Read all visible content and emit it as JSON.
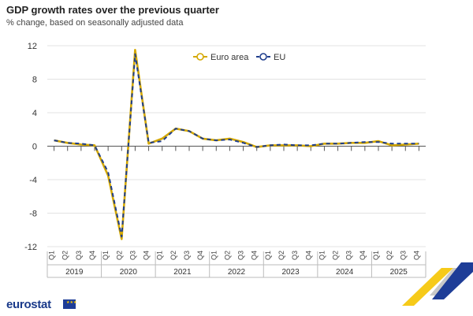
{
  "chart_data": {
    "type": "line",
    "title": "GDP growth rates over the previous quarter",
    "subtitle": "% change, based on seasonally adjusted data",
    "quarters": [
      "Q1",
      "Q2",
      "Q3",
      "Q4",
      "Q1",
      "Q2",
      "Q3",
      "Q4",
      "Q1",
      "Q2",
      "Q3",
      "Q4",
      "Q1",
      "Q2",
      "Q3",
      "Q4",
      "Q1",
      "Q2",
      "Q3",
      "Q4",
      "Q1",
      "Q2",
      "Q3",
      "Q4",
      "Q1",
      "Q2",
      "Q3",
      "Q4"
    ],
    "years": [
      "2019",
      "2020",
      "2021",
      "2022",
      "2023",
      "2024",
      "2025"
    ],
    "y_ticks": [
      "12",
      "8",
      "4",
      "0",
      "-4",
      "-8",
      "-12"
    ],
    "ylim": [
      -12,
      12
    ],
    "grid": true,
    "legend_position": "top-center",
    "series": [
      {
        "name": "Euro area",
        "color": "#d4a800",
        "values": [
          0.7,
          0.4,
          0.2,
          0.1,
          -3.5,
          -11.1,
          11.5,
          0.3,
          0.9,
          2.1,
          1.8,
          0.9,
          0.7,
          0.9,
          0.5,
          -0.1,
          0.1,
          0.1,
          0.1,
          0.0,
          0.3,
          0.3,
          0.4,
          0.4,
          0.6,
          0.1,
          0.2,
          0.3
        ]
      },
      {
        "name": "EU",
        "color": "#1e3d8c",
        "values": [
          0.7,
          0.4,
          0.3,
          0.1,
          -3.1,
          -10.8,
          11.0,
          0.4,
          0.6,
          2.1,
          1.8,
          0.9,
          0.7,
          0.8,
          0.4,
          -0.1,
          0.1,
          0.2,
          0.1,
          0.1,
          0.3,
          0.3,
          0.4,
          0.5,
          0.5,
          0.3,
          0.3,
          0.3
        ]
      }
    ]
  },
  "branding": {
    "logo_text": "eurostat"
  }
}
